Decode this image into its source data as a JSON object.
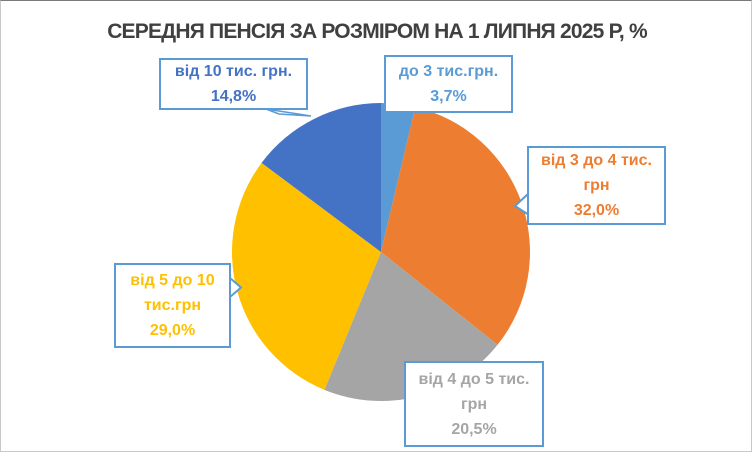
{
  "title": "СЕРЕДНЯ ПЕНСІЯ ЗА РОЗМІРОМ НА 1 ЛИПНЯ 2025 Р, %",
  "chart_data": {
    "type": "pie",
    "title": "СЕРЕДНЯ ПЕНСІЯ ЗА РОЗМІРОМ НА 1 ЛИПНЯ 2025 Р, %",
    "unit": "%",
    "start_angle_deg": 0,
    "direction": "clockwise",
    "legend": "none",
    "labels_position": "callout-boxes",
    "slices": [
      {
        "id": "upto3",
        "label": "до 3 тис.грн.",
        "value": 3.7,
        "display_value": "3,7%",
        "color": "#5B9BD5"
      },
      {
        "id": "3to4",
        "label": "від 3 до 4 тис. грн",
        "value": 32.0,
        "display_value": "32,0%",
        "color": "#ED7D31"
      },
      {
        "id": "4to5",
        "label": "від 4 до 5 тис. грн",
        "value": 20.5,
        "display_value": "20,5%",
        "color": "#A5A5A5"
      },
      {
        "id": "5to10",
        "label": "від 5 до 10 тис.грн",
        "value": 29.0,
        "display_value": "29,0%",
        "color": "#FFC000"
      },
      {
        "id": "over10",
        "label": "від 10 тис. грн.",
        "value": 14.8,
        "display_value": "14,8%",
        "color": "#4472C4"
      }
    ]
  },
  "callouts": {
    "over10": {
      "lines": [
        "від 10 тис. грн."
      ],
      "value": "14,8%",
      "color": "#4472C4"
    },
    "upto3": {
      "lines": [
        "до 3 тис.грн."
      ],
      "value": "3,7%",
      "color": "#5B9BD5"
    },
    "3to4": {
      "lines": [
        "від 3 до 4 тис.",
        "грн"
      ],
      "value": "32,0%",
      "color": "#ED7D31"
    },
    "4to5": {
      "lines": [
        "від 4 до 5 тис.",
        "грн"
      ],
      "value": "20,5%",
      "color": "#A5A5A5"
    },
    "5to10": {
      "lines": [
        "від 5 до 10",
        "тис.грн"
      ],
      "value": "29,0%",
      "color": "#FFC000"
    }
  },
  "style": {
    "title_color": "#404040",
    "callout_border_color": "#5B9BD5",
    "background_color": "#FFFFFF"
  }
}
